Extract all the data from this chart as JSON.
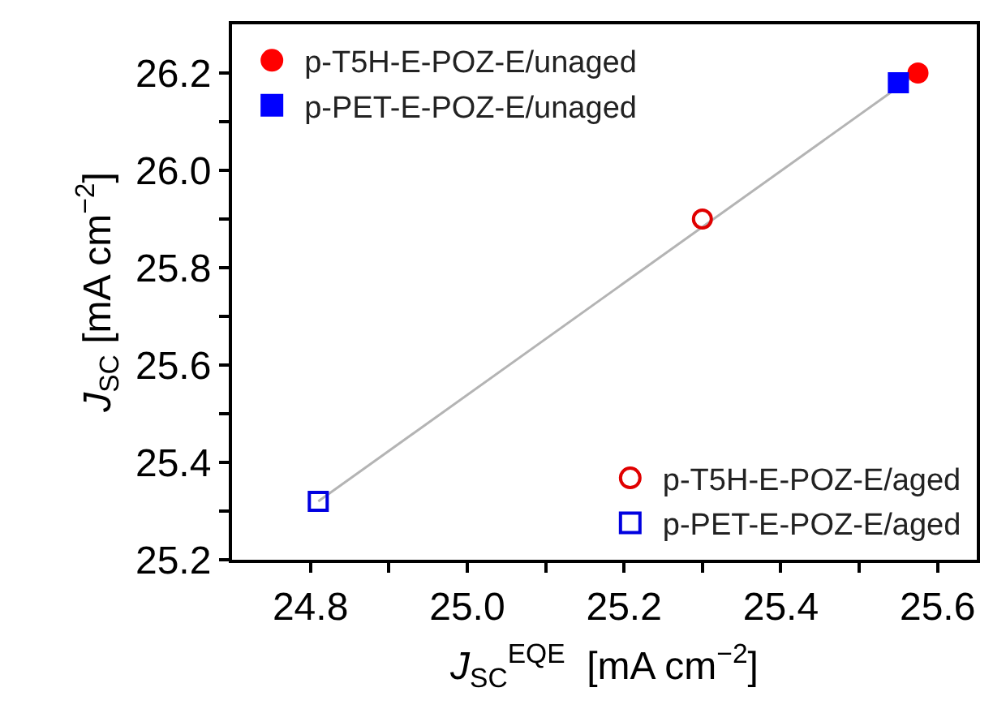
{
  "chart_data": {
    "type": "scatter",
    "xlabel": "J$_{SC}$$^{EQE}$  [mA cm$^{−2}$]",
    "ylabel": "J$_{SC}$ [mA cm$^{−2}$]",
    "xlim": [
      24.7,
      25.65
    ],
    "ylim": [
      25.2,
      26.3
    ],
    "xticks": [
      24.8,
      {
        "value": 24.9,
        "label": null
      },
      {
        "value": 25.0,
        "label": "25.0"
      },
      {
        "value": 25.1,
        "label": null
      },
      25.2,
      {
        "value": 25.3,
        "label": null
      },
      25.4,
      {
        "value": 25.5,
        "label": null
      },
      25.6
    ],
    "yticks": [
      25.2,
      {
        "value": 25.3,
        "label": null
      },
      25.4,
      {
        "value": 25.5,
        "label": null
      },
      25.6,
      {
        "value": 25.7,
        "label": null
      },
      25.8,
      {
        "value": 25.9,
        "label": null
      },
      {
        "value": 26.0,
        "label": "26.0"
      },
      {
        "value": 26.1,
        "label": null
      },
      26.2
    ],
    "legend": [
      "top left",
      "bottom right"
    ],
    "series": [
      {
        "type": "line",
        "color": "#b4b4b4",
        "x": [
          24.81,
          25.575
        ],
        "values": [
          25.32,
          26.2
        ],
        "marker": "none",
        "line_style": "solid"
      },
      {
        "name": "p-T5H-E-POZ-E/unaged",
        "color": "#ff0000",
        "x": [
          25.575
        ],
        "values": [
          26.2
        ],
        "marker": "circle"
      },
      {
        "name": "p-PET-E-POZ-E/unaged",
        "color": "#0000ff",
        "x": [
          25.55
        ],
        "values": [
          26.18
        ],
        "marker": "square"
      },
      {
        "name": "p-T5H-E-POZ-E/aged",
        "color": "#e00000",
        "x": [
          25.3
        ],
        "values": [
          25.9
        ],
        "marker": "circle-open"
      },
      {
        "name": "p-PET-E-POZ-E/aged",
        "color": "#0000e0",
        "x": [
          24.81
        ],
        "values": [
          25.32
        ],
        "marker": "square-open"
      }
    ]
  }
}
